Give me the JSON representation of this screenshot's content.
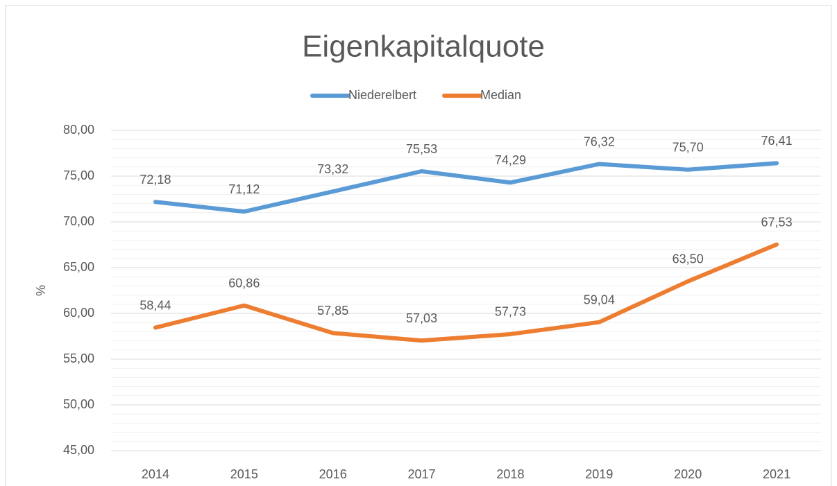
{
  "chart_data": {
    "type": "line",
    "title": "Eigenkapitalquote",
    "y_label": "%",
    "categories": [
      "2014",
      "2015",
      "2016",
      "2017",
      "2018",
      "2019",
      "2020",
      "2021"
    ],
    "series": [
      {
        "name": "Niederelbert",
        "color": "#5b9bd5",
        "values": [
          72.18,
          71.12,
          73.32,
          75.53,
          74.29,
          76.32,
          75.7,
          76.41
        ],
        "value_labels": [
          "72,18",
          "71,12",
          "73,32",
          "75,53",
          "74,29",
          "76,32",
          "75,70",
          "76,41"
        ]
      },
      {
        "name": "Median",
        "color": "#ed7d31",
        "values": [
          58.44,
          60.86,
          57.85,
          57.03,
          57.73,
          59.04,
          63.5,
          67.53
        ],
        "value_labels": [
          "58,44",
          "60,86",
          "57,85",
          "57,03",
          "57,73",
          "59,04",
          "63,50",
          "67,53"
        ]
      }
    ],
    "ylim": [
      45,
      80
    ],
    "yticks": [
      {
        "value": 45,
        "label": "45,00"
      },
      {
        "value": 50,
        "label": "50,00"
      },
      {
        "value": 55,
        "label": "55,00"
      },
      {
        "value": 60,
        "label": "60,00"
      },
      {
        "value": 65,
        "label": "65,00"
      },
      {
        "value": 70,
        "label": "70,00"
      },
      {
        "value": 75,
        "label": "75,00"
      },
      {
        "value": 80,
        "label": "80,00"
      }
    ],
    "minor_yticks": [
      46,
      47,
      48,
      49,
      51,
      52,
      53,
      54,
      56,
      57,
      58,
      59,
      61,
      62,
      63,
      64,
      66,
      67,
      68,
      69,
      71,
      72,
      73,
      74,
      76,
      77,
      78,
      79
    ],
    "grid": true,
    "legend": "top"
  }
}
